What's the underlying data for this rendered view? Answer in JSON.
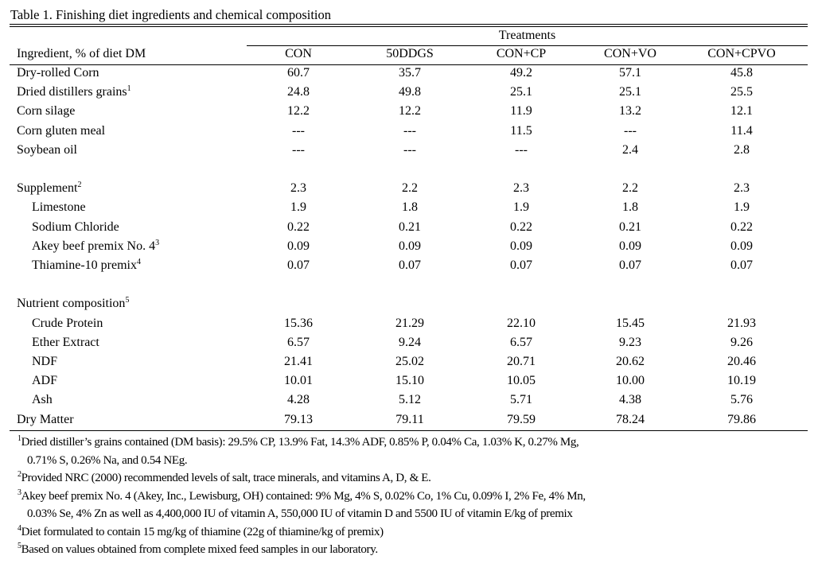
{
  "title": "Table 1.  Finishing diet ingredients and chemical composition",
  "spanner": "Treatments",
  "header": {
    "label": "Ingredient, % of diet DM",
    "columns": [
      "CON",
      "50DDGS",
      "CON+CP",
      "CON+VO",
      "CON+CPVO"
    ]
  },
  "rows": [
    {
      "label": "Dry-rolled Corn",
      "sup": "",
      "indent": false,
      "values": [
        "60.7",
        "35.7",
        "49.2",
        "57.1",
        "45.8"
      ]
    },
    {
      "label": "Dried distillers grains",
      "sup": "1",
      "indent": false,
      "values": [
        "24.8",
        "49.8",
        "25.1",
        "25.1",
        "25.5"
      ]
    },
    {
      "label": "Corn silage",
      "sup": "",
      "indent": false,
      "values": [
        "12.2",
        "12.2",
        "11.9",
        "13.2",
        "12.1"
      ]
    },
    {
      "label": "Corn gluten meal",
      "sup": "",
      "indent": false,
      "values": [
        "---",
        "---",
        "11.5",
        "---",
        "11.4"
      ]
    },
    {
      "label": "Soybean oil",
      "sup": "",
      "indent": false,
      "values": [
        "---",
        "---",
        "---",
        "2.4",
        "2.8"
      ]
    },
    null,
    {
      "label": "Supplement",
      "sup": "2",
      "indent": false,
      "values": [
        "2.3",
        "2.2",
        "2.3",
        "2.2",
        "2.3"
      ]
    },
    {
      "label": "Limestone",
      "sup": "",
      "indent": true,
      "values": [
        "1.9",
        "1.8",
        "1.9",
        "1.8",
        "1.9"
      ]
    },
    {
      "label": "Sodium Chloride",
      "sup": "",
      "indent": true,
      "values": [
        "0.22",
        "0.21",
        "0.22",
        "0.21",
        "0.22"
      ]
    },
    {
      "label": "Akey beef premix No. 4",
      "sup": "3",
      "indent": true,
      "values": [
        "0.09",
        "0.09",
        "0.09",
        "0.09",
        "0.09"
      ]
    },
    {
      "label": "Thiamine-10 premix",
      "sup": "4",
      "indent": true,
      "values": [
        "0.07",
        "0.07",
        "0.07",
        "0.07",
        "0.07"
      ]
    },
    null,
    {
      "label": "Nutrient composition",
      "sup": "5",
      "indent": false,
      "values": [
        "",
        "",
        "",
        "",
        ""
      ]
    },
    {
      "label": "Crude Protein",
      "sup": "",
      "indent": true,
      "values": [
        "15.36",
        "21.29",
        "22.10",
        "15.45",
        "21.93"
      ]
    },
    {
      "label": "Ether Extract",
      "sup": "",
      "indent": true,
      "values": [
        "6.57",
        "9.24",
        "6.57",
        "9.23",
        "9.26"
      ]
    },
    {
      "label": "NDF",
      "sup": "",
      "indent": true,
      "values": [
        "21.41",
        "25.02",
        "20.71",
        "20.62",
        "20.46"
      ]
    },
    {
      "label": "ADF",
      "sup": "",
      "indent": true,
      "values": [
        "10.01",
        "15.10",
        "10.05",
        "10.00",
        "10.19"
      ]
    },
    {
      "label": "Ash",
      "sup": "",
      "indent": true,
      "values": [
        "4.28",
        "5.12",
        "5.71",
        "4.38",
        "5.76"
      ]
    },
    {
      "label": "Dry Matter",
      "sup": "",
      "indent": false,
      "values": [
        "79.13",
        "79.11",
        "79.59",
        "78.24",
        "79.86"
      ]
    }
  ],
  "footnotes": [
    {
      "mark": "1",
      "lines": [
        "Dried distiller’s grains contained (DM basis): 29.5% CP, 13.9% Fat, 14.3% ADF, 0.85% P, 0.04% Ca, 1.03% K, 0.27% Mg,",
        "0.71% S, 0.26% Na, and 0.54 NEg."
      ]
    },
    {
      "mark": "2",
      "lines": [
        "Provided NRC (2000) recommended levels of salt, trace minerals, and vitamins A, D, & E."
      ]
    },
    {
      "mark": "3",
      "lines": [
        "Akey beef premix No. 4 (Akey, Inc., Lewisburg, OH) contained: 9% Mg, 4% S, 0.02% Co, 1% Cu, 0.09% I, 2% Fe, 4% Mn,",
        "0.03% Se, 4% Zn as well as 4,400,000 IU of vitamin A, 550,000 IU of vitamin D and 5500 IU of vitamin E/kg of premix"
      ]
    },
    {
      "mark": "4",
      "lines": [
        "Diet formulated to contain 15 mg/kg of thiamine (22g of thiamine/kg of premix)"
      ]
    },
    {
      "mark": "5",
      "lines": [
        "Based on values obtained from complete mixed feed samples in our laboratory."
      ]
    }
  ]
}
